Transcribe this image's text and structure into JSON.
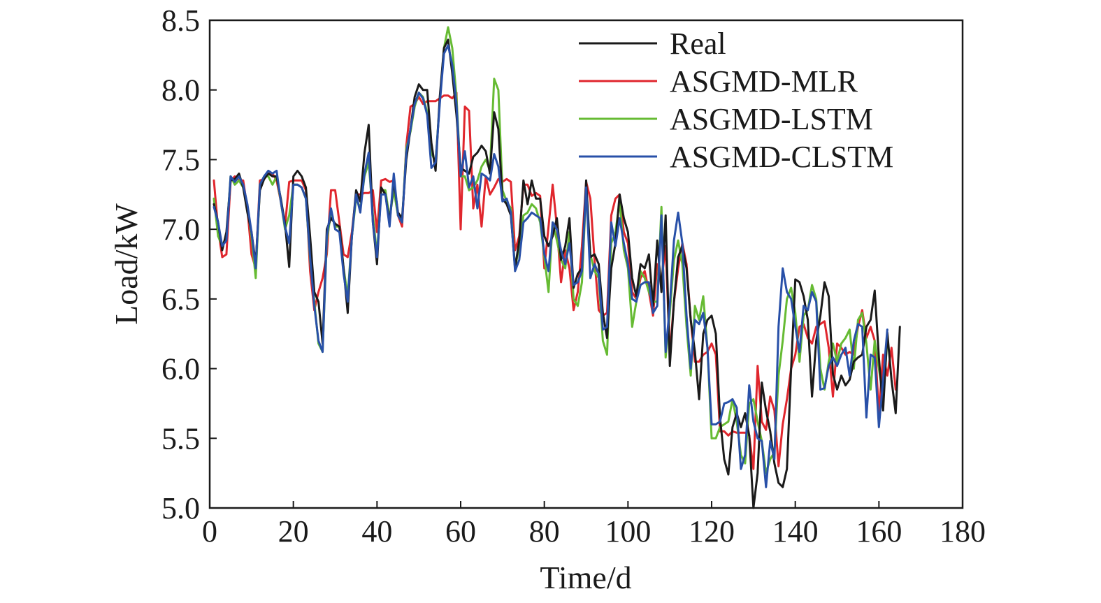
{
  "chart_data": {
    "type": "line",
    "title": "",
    "xlabel": "Time/d",
    "ylabel": "Load/kW",
    "xlim": [
      0,
      180
    ],
    "ylim": [
      5.0,
      8.5
    ],
    "xticks": [
      "0",
      "20",
      "40",
      "60",
      "80",
      "100",
      "120",
      "140",
      "160",
      "180"
    ],
    "yticks": [
      "5.0",
      "5.5",
      "6.0",
      "6.5",
      "7.0",
      "7.5",
      "8.0",
      "8.5"
    ],
    "grid": false,
    "legend_position": "top-right",
    "x_start": 1,
    "series": [
      {
        "name": "Real",
        "color": "#1a1a1a",
        "values": [
          7.18,
          7.05,
          6.85,
          6.98,
          7.35,
          7.36,
          7.4,
          7.3,
          7.12,
          6.98,
          6.75,
          7.28,
          7.36,
          7.4,
          7.38,
          7.38,
          7.22,
          7.04,
          6.73,
          7.38,
          7.42,
          7.38,
          7.3,
          6.95,
          6.55,
          6.48,
          6.18,
          7.0,
          7.08,
          7.04,
          7.02,
          6.72,
          6.4,
          6.95,
          7.28,
          7.2,
          7.55,
          7.75,
          7.05,
          6.75,
          7.3,
          7.25,
          7.05,
          7.35,
          7.12,
          7.08,
          7.5,
          7.72,
          7.95,
          8.04,
          8.0,
          8.0,
          7.62,
          7.42,
          7.95,
          8.3,
          8.36,
          8.12,
          7.82,
          7.44,
          7.42,
          7.4,
          7.52,
          7.55,
          7.6,
          7.56,
          7.4,
          7.84,
          7.72,
          7.22,
          7.18,
          7.1,
          6.72,
          6.92,
          7.35,
          7.18,
          7.35,
          7.22,
          7.22,
          6.95,
          6.88,
          6.95,
          7.08,
          6.78,
          6.88,
          7.08,
          6.58,
          6.68,
          6.72,
          7.35,
          6.8,
          6.82,
          6.75,
          6.4,
          6.22,
          6.72,
          6.9,
          7.25,
          7.08,
          6.98,
          6.65,
          6.52,
          6.75,
          6.72,
          6.82,
          6.45,
          6.92,
          6.55,
          7.1,
          6.02,
          6.48,
          6.8,
          6.88,
          6.72,
          6.35,
          6.12,
          5.78,
          6.25,
          6.35,
          6.38,
          6.25,
          5.65,
          5.35,
          5.24,
          5.58,
          5.68,
          5.58,
          5.68,
          5.52,
          5.0,
          5.25,
          5.9,
          5.7,
          5.55,
          5.32,
          5.18,
          5.15,
          5.28,
          6.0,
          6.64,
          6.62,
          6.52,
          6.35,
          5.8,
          6.2,
          6.38,
          6.62,
          6.52,
          5.96,
          5.85,
          5.95,
          5.88,
          5.92,
          6.05,
          6.08,
          6.1,
          6.3,
          6.35,
          6.56,
          6.08,
          5.7,
          6.26,
          5.92,
          5.68,
          6.3
        ],
        "values_note": ""
      },
      {
        "name": "ASGMD-MLR",
        "color": "#e0262d",
        "values": [
          7.35,
          7.0,
          6.8,
          6.82,
          7.35,
          7.38,
          7.35,
          7.35,
          7.15,
          6.82,
          6.72,
          7.35,
          7.36,
          7.4,
          7.4,
          7.35,
          7.2,
          7.02,
          7.34,
          7.35,
          7.35,
          7.35,
          7.28,
          6.7,
          6.42,
          6.55,
          6.65,
          6.82,
          7.28,
          7.28,
          7.05,
          6.82,
          6.8,
          6.98,
          7.25,
          7.25,
          7.26,
          7.26,
          7.28,
          6.98,
          7.35,
          7.36,
          7.34,
          7.35,
          7.1,
          7.02,
          7.6,
          7.88,
          7.9,
          7.95,
          7.9,
          7.92,
          7.92,
          7.92,
          7.94,
          7.96,
          7.96,
          7.94,
          7.98,
          7.0,
          7.88,
          7.85,
          7.15,
          7.32,
          7.02,
          7.38,
          7.25,
          7.3,
          7.36,
          7.34,
          7.36,
          7.34,
          6.85,
          6.95,
          7.32,
          7.32,
          7.24,
          7.26,
          7.24,
          6.72,
          7.02,
          7.32,
          7.02,
          6.62,
          6.85,
          6.72,
          6.42,
          6.55,
          6.88,
          7.34,
          7.22,
          6.78,
          6.42,
          6.38,
          6.4,
          7.1,
          7.22,
          7.25,
          6.98,
          6.9,
          6.55,
          6.5,
          6.65,
          6.7,
          6.55,
          6.38,
          6.75,
          6.62,
          6.88,
          6.1,
          6.48,
          6.72,
          6.9,
          6.75,
          6.35,
          6.05,
          6.05,
          6.1,
          6.12,
          6.18,
          6.1,
          5.55,
          5.55,
          5.52,
          5.55,
          5.54,
          5.54,
          5.54,
          5.52,
          5.28,
          6.02,
          5.62,
          5.56,
          5.8,
          5.7,
          5.3,
          5.6,
          5.78,
          6.0,
          6.1,
          6.3,
          6.32,
          6.22,
          6.18,
          6.3,
          6.32,
          6.34,
          6.15,
          5.8,
          6.18,
          6.15,
          6.1,
          6.12,
          6.1,
          6.3,
          6.42,
          6.22,
          6.3,
          6.2,
          5.68,
          6.1,
          5.95,
          6.15,
          5.85
        ],
        "values_note": ""
      },
      {
        "name": "ASGMD-LSTM",
        "color": "#66bb33",
        "values": [
          7.22,
          6.95,
          6.88,
          6.95,
          7.38,
          7.32,
          7.35,
          7.3,
          7.15,
          6.95,
          6.65,
          7.32,
          7.38,
          7.38,
          7.32,
          7.38,
          7.2,
          7.0,
          7.1,
          7.32,
          7.32,
          7.3,
          7.22,
          6.78,
          6.48,
          6.18,
          6.12,
          6.92,
          7.12,
          7.02,
          7.02,
          6.72,
          6.52,
          6.95,
          7.22,
          7.15,
          7.38,
          7.48,
          7.1,
          6.82,
          7.28,
          7.28,
          7.08,
          7.28,
          7.1,
          7.05,
          7.58,
          7.7,
          7.88,
          7.98,
          7.95,
          7.84,
          7.55,
          7.48,
          7.92,
          8.3,
          8.45,
          8.3,
          7.95,
          7.38,
          7.38,
          7.28,
          7.3,
          7.35,
          7.45,
          7.5,
          7.42,
          8.08,
          8.0,
          7.28,
          7.2,
          7.15,
          6.72,
          6.88,
          7.1,
          7.12,
          7.18,
          7.15,
          7.05,
          6.8,
          6.55,
          7.05,
          6.92,
          6.78,
          6.72,
          6.98,
          6.5,
          6.45,
          6.62,
          7.28,
          6.82,
          6.7,
          6.65,
          6.2,
          6.1,
          6.9,
          6.98,
          7.2,
          6.85,
          6.72,
          6.3,
          6.48,
          6.7,
          6.65,
          6.55,
          6.48,
          6.48,
          7.16,
          6.08,
          6.4,
          6.78,
          6.92,
          6.75,
          6.3,
          5.95,
          6.45,
          6.35,
          6.52,
          6.15,
          5.5,
          5.5,
          5.58,
          5.6,
          5.62,
          5.78,
          5.62,
          5.38,
          5.32,
          5.75,
          5.78,
          5.62,
          5.48,
          5.25,
          5.35,
          5.4,
          5.95,
          6.2,
          6.5,
          6.58,
          6.4,
          6.05,
          6.38,
          6.42,
          6.6,
          6.5,
          6.0,
          5.85,
          6.05,
          6.18,
          6.05,
          6.18,
          6.22,
          6.28,
          6.0,
          6.35,
          6.4,
          6.18,
          5.85,
          6.2,
          6.0,
          5.8,
          6.2
        ],
        "values_note": ""
      },
      {
        "name": "ASGMD-CLSTM",
        "color": "#2850a8",
        "values": [
          7.16,
          7.05,
          6.88,
          6.92,
          7.38,
          7.34,
          7.38,
          7.32,
          7.18,
          6.98,
          6.72,
          7.32,
          7.38,
          7.42,
          7.4,
          7.42,
          7.2,
          7.02,
          6.9,
          7.32,
          7.32,
          7.3,
          7.22,
          6.8,
          6.45,
          6.2,
          6.12,
          6.95,
          7.15,
          7.0,
          6.98,
          6.68,
          6.48,
          6.95,
          7.25,
          7.12,
          7.4,
          7.55,
          7.05,
          6.8,
          7.25,
          7.25,
          7.02,
          7.4,
          7.1,
          7.05,
          7.55,
          7.72,
          7.9,
          7.98,
          7.94,
          7.82,
          7.44,
          7.48,
          7.9,
          8.26,
          8.32,
          8.18,
          7.9,
          7.38,
          7.56,
          7.3,
          7.38,
          7.15,
          7.4,
          7.38,
          7.35,
          7.54,
          7.45,
          7.2,
          7.22,
          7.12,
          6.7,
          6.78,
          7.05,
          7.08,
          7.12,
          7.1,
          7.08,
          6.82,
          6.7,
          7.05,
          7.0,
          6.85,
          6.75,
          6.9,
          6.6,
          6.62,
          6.7,
          7.3,
          6.65,
          6.75,
          6.68,
          6.28,
          6.3,
          7.05,
          6.88,
          7.08,
          6.9,
          6.75,
          6.5,
          6.48,
          6.6,
          6.62,
          6.62,
          6.4,
          6.45,
          7.1,
          6.12,
          6.45,
          6.92,
          7.12,
          6.9,
          6.38,
          6.0,
          6.35,
          6.32,
          6.4,
          6.15,
          5.6,
          5.6,
          5.62,
          5.75,
          5.76,
          5.78,
          5.72,
          5.28,
          5.38,
          5.88,
          5.62,
          5.5,
          5.48,
          5.15,
          5.48,
          5.35,
          6.3,
          6.72,
          6.55,
          6.5,
          6.3,
          6.12,
          6.45,
          6.42,
          6.55,
          6.48,
          5.85,
          5.86,
          6.02,
          6.08,
          6.02,
          6.1,
          6.15,
          5.95,
          6.2,
          6.32,
          6.3,
          5.65,
          6.1,
          6.08,
          5.58,
          5.92,
          6.28
        ],
        "values_note": ""
      }
    ]
  }
}
